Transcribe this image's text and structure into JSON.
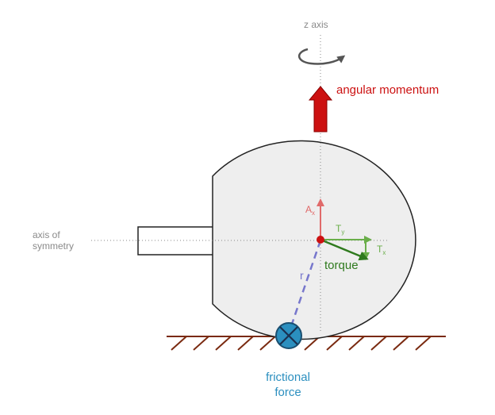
{
  "labels": {
    "z_axis": "z axis",
    "angular_momentum": "angular momentum",
    "axis_of_symmetry_line1": "axis of",
    "axis_of_symmetry_line2": "symmetry",
    "a_main": "A",
    "a_sub": "x",
    "ty_main": "T",
    "ty_sub": "y",
    "tx_main": "T",
    "tx_sub": "x",
    "torque": "torque",
    "r": "r",
    "frictional_line1": "frictional",
    "frictional_line2": "force"
  },
  "colors": {
    "angular_momentum": "#cc1111",
    "torque": "#2f7a1e",
    "torque_components": "#6aae4a",
    "a_vector": "#e06a6a",
    "friction": "#2b8fbf",
    "radius": "#7777cc",
    "ground": "#7a2a10",
    "body_fill": "#eeeeee"
  }
}
